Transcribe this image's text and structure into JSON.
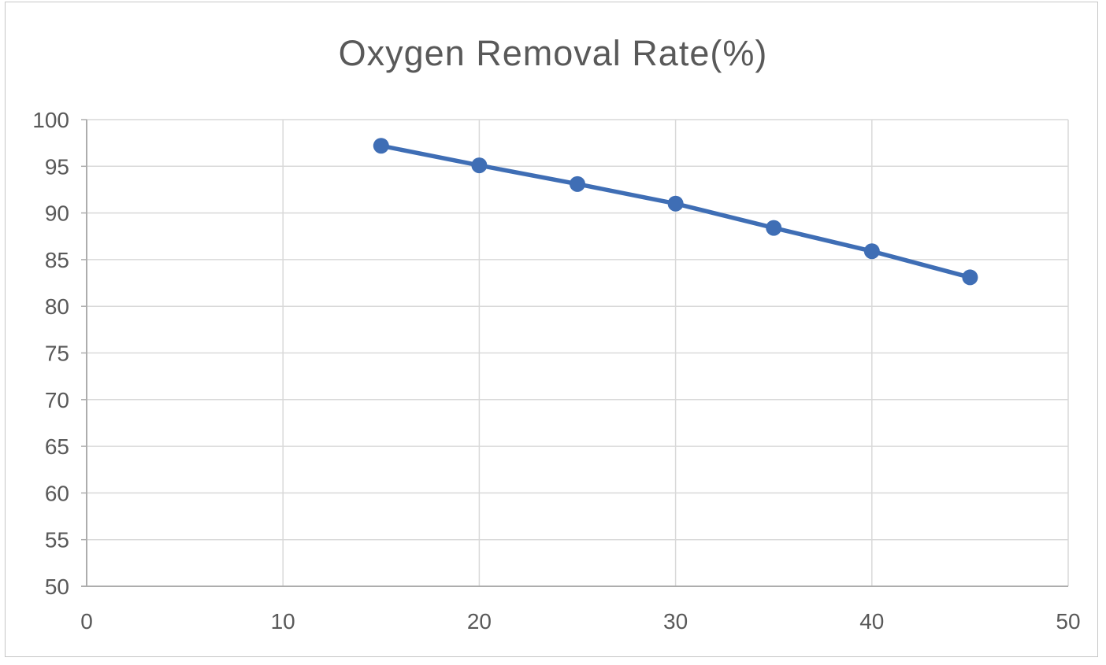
{
  "chart_data": {
    "type": "line",
    "title": "Oxygen Removal Rate(%)",
    "series": [
      {
        "name": "Oxygen Removal Rate",
        "x": [
          15,
          20,
          25,
          30,
          35,
          40,
          45
        ],
        "values": [
          97.2,
          95.1,
          93.1,
          91.0,
          88.4,
          85.9,
          83.1
        ]
      }
    ],
    "xlim": [
      0,
      50
    ],
    "ylim": [
      50,
      100
    ],
    "x_ticks": [
      0,
      10,
      20,
      30,
      40,
      50
    ],
    "y_ticks": [
      50,
      55,
      60,
      65,
      70,
      75,
      80,
      85,
      90,
      95,
      100
    ],
    "grid": true,
    "legend_position": "none",
    "marker": "circle",
    "colors": {
      "line": "#3F6EB5",
      "marker": "#3F6EB5",
      "grid": "#D9D9D9",
      "axis": "#ADADAD",
      "title": "#595959",
      "tick_label": "#595959",
      "background": "#FFFFFF",
      "frame_border": "#C6C6C6"
    }
  }
}
